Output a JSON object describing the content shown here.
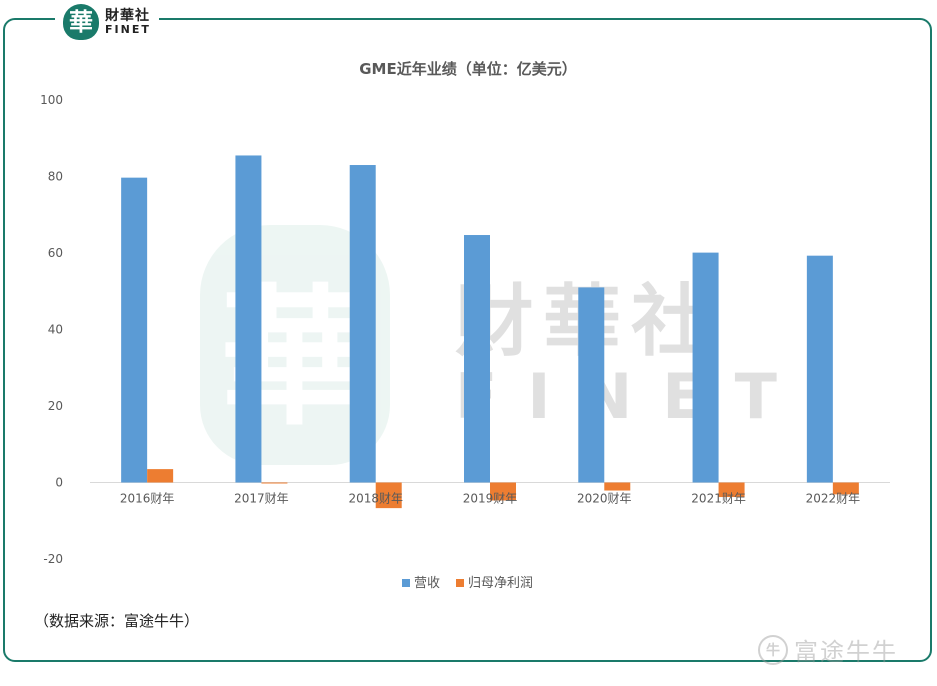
{
  "logo": {
    "seal_char": "華",
    "cn": "財華社",
    "en": "FINET"
  },
  "watermark": {
    "seal_char": "華",
    "cn": "財華社",
    "en": "FINET"
  },
  "source": "（数据来源：富途牛牛）",
  "futu": {
    "icon": "futu-logo-icon",
    "icon_char": "牛",
    "text": "富途牛牛"
  },
  "colors": {
    "frame": "#1a7a6a",
    "revenue": "#5b9bd5",
    "net_income": "#ed7d31"
  },
  "chart_data": {
    "type": "bar",
    "title": "GME近年业绩（单位：亿美元）",
    "categories": [
      "2016财年",
      "2017财年",
      "2018财年",
      "2019财年",
      "2020财年",
      "2021财年",
      "2022财年"
    ],
    "series": [
      {
        "name": "营收",
        "color": "#5b9bd5",
        "values": [
          79.7,
          85.5,
          83.0,
          64.7,
          51.0,
          60.1,
          59.3
        ]
      },
      {
        "name": "归母净利润",
        "color": "#ed7d31",
        "values": [
          3.5,
          -0.1,
          -6.7,
          -4.7,
          -2.1,
          -3.8,
          -3.1
        ]
      }
    ],
    "y_ticks": [
      100,
      80,
      60,
      40,
      20,
      0,
      -20
    ],
    "ylim": [
      -20,
      100
    ],
    "grid": false,
    "legend_position": "bottom"
  }
}
